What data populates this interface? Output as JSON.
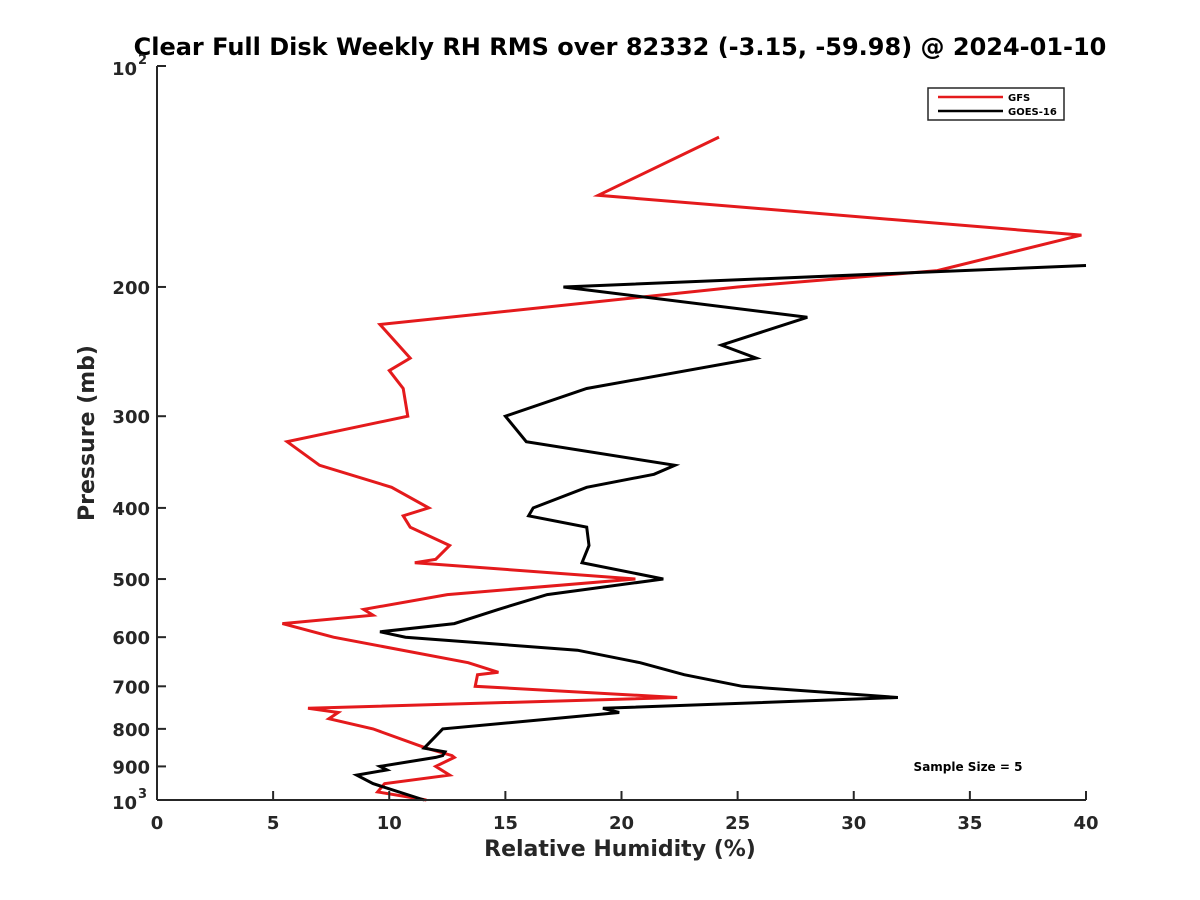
{
  "chart_data": {
    "type": "line",
    "title": "Clear Full Disk Weekly RH RMS over 82332 (-3.15, -59.98) @ 2024-01-10",
    "xlabel": "Relative Humidity (%)",
    "ylabel": "Pressure (mb)",
    "xlim": [
      0,
      40
    ],
    "ylim": [
      1000,
      100
    ],
    "yscale": "log",
    "y_reversed": true,
    "x_ticks": [
      "0",
      "5",
      "10",
      "15",
      "20",
      "25",
      "30",
      "35",
      "40"
    ],
    "y_ticks": [
      {
        "value": 100,
        "base": "10",
        "exp": "2"
      },
      {
        "value": 200,
        "label": "200"
      },
      {
        "value": 300,
        "label": "300"
      },
      {
        "value": 400,
        "label": "400"
      },
      {
        "value": 500,
        "label": "500"
      },
      {
        "value": 600,
        "label": "600"
      },
      {
        "value": 700,
        "label": "700"
      },
      {
        "value": 800,
        "label": "800"
      },
      {
        "value": 900,
        "label": "900"
      },
      {
        "value": 1000,
        "base": "10",
        "exp": "3"
      }
    ],
    "legend_position": "top-right",
    "grid": false,
    "annotation": "Sample Size = 5",
    "series": [
      {
        "name": "GFS",
        "color": "#e41a1c",
        "points": [
          [
            24.2,
            125
          ],
          [
            19.0,
            150
          ],
          [
            39.8,
            170
          ],
          [
            33.6,
            190
          ],
          [
            25.0,
            200
          ],
          [
            9.6,
            225
          ],
          [
            10.9,
            250
          ],
          [
            10.0,
            260
          ],
          [
            10.6,
            275
          ],
          [
            10.8,
            300
          ],
          [
            5.6,
            325
          ],
          [
            7.0,
            350
          ],
          [
            10.1,
            375
          ],
          [
            11.7,
            400
          ],
          [
            10.6,
            410
          ],
          [
            10.9,
            425
          ],
          [
            12.6,
            450
          ],
          [
            12.0,
            470
          ],
          [
            11.1,
            475
          ],
          [
            20.6,
            500
          ],
          [
            12.5,
            525
          ],
          [
            8.9,
            550
          ],
          [
            9.3,
            560
          ],
          [
            5.4,
            575
          ],
          [
            7.6,
            600
          ],
          [
            13.4,
            650
          ],
          [
            14.7,
            670
          ],
          [
            13.8,
            675
          ],
          [
            13.7,
            700
          ],
          [
            22.4,
            725
          ],
          [
            6.5,
            750
          ],
          [
            7.8,
            760
          ],
          [
            7.4,
            775
          ],
          [
            9.3,
            800
          ],
          [
            11.6,
            850
          ],
          [
            12.7,
            870
          ],
          [
            12.8,
            875
          ],
          [
            12.0,
            900
          ],
          [
            12.6,
            925
          ],
          [
            9.8,
            950
          ],
          [
            9.5,
            975
          ],
          [
            11.6,
            1000
          ]
        ]
      },
      {
        "name": "GOES-16",
        "color": "#000000",
        "points": [
          [
            40.0,
            187
          ],
          [
            17.5,
            200
          ],
          [
            28.0,
            220
          ],
          [
            24.3,
            240
          ],
          [
            25.8,
            250
          ],
          [
            18.5,
            275
          ],
          [
            15.0,
            300
          ],
          [
            15.9,
            325
          ],
          [
            22.3,
            350
          ],
          [
            21.4,
            360
          ],
          [
            18.5,
            375
          ],
          [
            16.2,
            400
          ],
          [
            16.0,
            410
          ],
          [
            18.5,
            425
          ],
          [
            18.6,
            450
          ],
          [
            18.3,
            475
          ],
          [
            21.8,
            500
          ],
          [
            16.8,
            525
          ],
          [
            14.7,
            550
          ],
          [
            12.8,
            575
          ],
          [
            9.6,
            590
          ],
          [
            10.7,
            600
          ],
          [
            18.1,
            625
          ],
          [
            20.8,
            650
          ],
          [
            22.7,
            675
          ],
          [
            25.2,
            700
          ],
          [
            31.9,
            725
          ],
          [
            19.2,
            750
          ],
          [
            19.9,
            760
          ],
          [
            12.3,
            800
          ],
          [
            11.5,
            850
          ],
          [
            12.4,
            860
          ],
          [
            12.3,
            870
          ],
          [
            12.0,
            875
          ],
          [
            9.6,
            900
          ],
          [
            9.9,
            910
          ],
          [
            8.6,
            925
          ],
          [
            9.3,
            950
          ],
          [
            11.5,
            1000
          ]
        ]
      }
    ]
  }
}
